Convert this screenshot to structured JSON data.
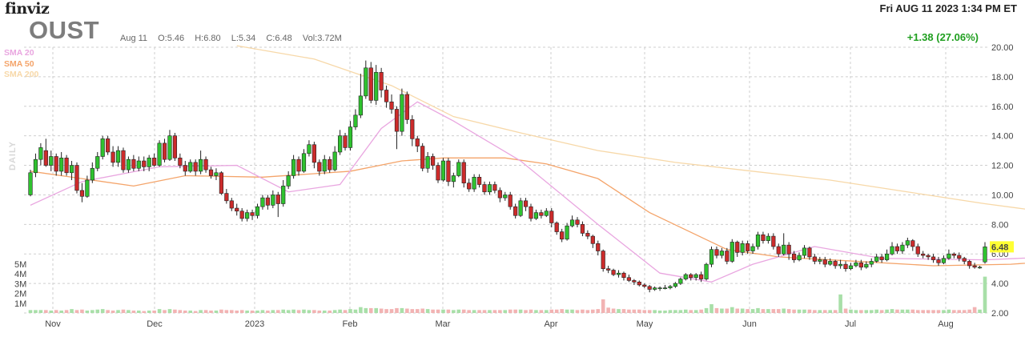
{
  "header": {
    "logo": "finviz",
    "datetime": "Fri AUG 11 2023 1:34 PM ET",
    "ticker": "OUST",
    "date": "Aug 11",
    "open": "O:5.46",
    "high": "H:6.80",
    "low": "L:5.34",
    "close": "C:6.48",
    "volume": "Vol:3.72M",
    "change": "+1.38 (27.06%)",
    "side_label": "DAILY"
  },
  "legend": [
    {
      "label": "SMA 20",
      "color": "#e9a6e0"
    },
    {
      "label": "SMA 50",
      "color": "#f4a46a"
    },
    {
      "label": "SMA 200",
      "color": "#f7d8a8"
    }
  ],
  "colors": {
    "up": "#2fc22f",
    "down": "#cc2b2b",
    "vol_up": "#a8dfa8",
    "vol_down": "#f2b3b3",
    "grid": "#cfcfcf",
    "last_price_bg": "#ffff33"
  },
  "chart_data": {
    "type": "candlestick",
    "y_axis": {
      "ticks": [
        "2.00",
        "4.00",
        "6.00",
        "8.00",
        "10.00",
        "12.00",
        "14.00",
        "16.00",
        "18.00",
        "20.00"
      ],
      "ylim": [
        2,
        20
      ]
    },
    "volume_axis": {
      "ticks": [
        "1M",
        "2M",
        "3M",
        "4M",
        "5M"
      ]
    },
    "x_ticks": [
      "Nov",
      "Dec",
      "2023",
      "Feb",
      "Mar",
      "Apr",
      "May",
      "Jun",
      "Jul",
      "Aug"
    ],
    "last_price": "6.48",
    "candles": [
      [
        10.0,
        11.5,
        11.7,
        9.9,
        0.3
      ],
      [
        11.5,
        12.4,
        12.8,
        11.2,
        0.3
      ],
      [
        12.4,
        13.2,
        13.5,
        12.0,
        0.3
      ],
      [
        13.0,
        12.0,
        13.8,
        11.9,
        0.3
      ],
      [
        12.0,
        12.6,
        13.0,
        11.6,
        0.25
      ],
      [
        12.6,
        11.6,
        12.8,
        11.3,
        0.3
      ],
      [
        11.6,
        12.5,
        12.9,
        11.3,
        0.25
      ],
      [
        12.5,
        11.5,
        12.7,
        11.3,
        0.3
      ],
      [
        11.5,
        12.0,
        12.3,
        11.0,
        0.4
      ],
      [
        12.0,
        10.3,
        12.2,
        10.1,
        0.3
      ],
      [
        10.3,
        9.9,
        10.8,
        9.5,
        0.35
      ],
      [
        9.9,
        11.0,
        11.3,
        9.8,
        0.25
      ],
      [
        11.0,
        11.8,
        12.2,
        10.8,
        0.3
      ],
      [
        11.8,
        12.6,
        12.9,
        11.6,
        0.35
      ],
      [
        12.6,
        13.8,
        14.0,
        12.4,
        0.4
      ],
      [
        13.8,
        12.9,
        14.0,
        12.7,
        0.3
      ],
      [
        12.9,
        12.2,
        13.3,
        11.9,
        0.25
      ],
      [
        12.2,
        13.0,
        13.3,
        11.9,
        0.3
      ],
      [
        13.0,
        11.7,
        13.2,
        11.5,
        0.35
      ],
      [
        11.7,
        12.4,
        12.6,
        11.5,
        0.3
      ],
      [
        12.4,
        11.8,
        12.7,
        11.6,
        0.25
      ],
      [
        11.8,
        12.3,
        12.6,
        11.6,
        0.25
      ],
      [
        12.3,
        11.9,
        12.6,
        11.6,
        0.2
      ],
      [
        11.9,
        12.5,
        12.7,
        11.6,
        0.25
      ],
      [
        12.5,
        12.0,
        12.8,
        11.9,
        0.25
      ],
      [
        12.0,
        13.5,
        13.7,
        11.9,
        0.4
      ],
      [
        13.5,
        12.4,
        13.8,
        12.2,
        0.3
      ],
      [
        12.4,
        14.0,
        14.4,
        12.3,
        0.4
      ],
      [
        14.0,
        12.5,
        14.2,
        12.3,
        0.35
      ],
      [
        12.5,
        12.0,
        12.8,
        11.8,
        0.3
      ],
      [
        12.0,
        11.6,
        12.3,
        11.3,
        0.25
      ],
      [
        11.6,
        12.2,
        12.4,
        11.5,
        0.25
      ],
      [
        12.2,
        11.6,
        12.4,
        11.3,
        0.2
      ],
      [
        11.6,
        12.4,
        13.0,
        11.4,
        0.3
      ],
      [
        12.4,
        11.7,
        12.6,
        11.5,
        0.3
      ],
      [
        11.7,
        11.3,
        11.9,
        11.1,
        0.25
      ],
      [
        11.3,
        11.5,
        11.8,
        11.0,
        0.25
      ],
      [
        11.5,
        10.1,
        11.6,
        10.0,
        0.35
      ],
      [
        10.1,
        9.6,
        10.4,
        9.4,
        0.3
      ],
      [
        9.6,
        9.1,
        9.8,
        8.9,
        0.3
      ],
      [
        9.1,
        8.9,
        9.4,
        8.6,
        0.25
      ],
      [
        8.9,
        8.4,
        9.1,
        8.2,
        0.3
      ],
      [
        8.4,
        8.8,
        9.0,
        8.2,
        0.25
      ],
      [
        8.8,
        8.6,
        9.0,
        8.3,
        0.25
      ],
      [
        8.6,
        9.2,
        9.4,
        8.4,
        0.25
      ],
      [
        9.2,
        9.8,
        10.0,
        9.0,
        0.3
      ],
      [
        9.8,
        9.3,
        10.0,
        9.0,
        0.25
      ],
      [
        9.3,
        10.0,
        10.3,
        9.1,
        0.3
      ],
      [
        10.0,
        9.4,
        10.2,
        8.5,
        0.3
      ],
      [
        9.4,
        10.6,
        11.0,
        9.2,
        0.35
      ],
      [
        10.6,
        11.3,
        11.6,
        10.4,
        0.3
      ],
      [
        11.3,
        12.4,
        12.7,
        11.1,
        0.35
      ],
      [
        12.4,
        11.6,
        12.6,
        11.3,
        0.3
      ],
      [
        11.6,
        12.8,
        13.1,
        11.5,
        0.35
      ],
      [
        12.8,
        13.4,
        13.7,
        12.6,
        0.3
      ],
      [
        13.4,
        12.2,
        13.6,
        11.8,
        0.3
      ],
      [
        12.2,
        11.6,
        12.4,
        11.3,
        0.25
      ],
      [
        11.6,
        12.4,
        12.7,
        11.4,
        0.25
      ],
      [
        12.4,
        11.7,
        12.6,
        11.5,
        0.25
      ],
      [
        11.7,
        12.9,
        13.3,
        11.6,
        0.3
      ],
      [
        12.9,
        14.0,
        14.4,
        12.7,
        0.35
      ],
      [
        14.0,
        13.2,
        14.2,
        13.0,
        0.3
      ],
      [
        13.2,
        14.6,
        15.0,
        13.0,
        0.4
      ],
      [
        14.6,
        15.4,
        15.8,
        14.4,
        0.35
      ],
      [
        15.4,
        16.7,
        18.2,
        15.2,
        0.6
      ],
      [
        16.7,
        18.6,
        19.1,
        16.5,
        0.5
      ],
      [
        18.6,
        16.4,
        19.0,
        16.2,
        0.5
      ],
      [
        16.4,
        18.3,
        18.8,
        16.1,
        0.5
      ],
      [
        18.3,
        17.1,
        18.6,
        16.6,
        0.45
      ],
      [
        17.1,
        16.3,
        17.4,
        15.9,
        0.4
      ],
      [
        16.3,
        15.8,
        16.8,
        15.5,
        0.4
      ],
      [
        15.8,
        14.3,
        16.0,
        13.1,
        0.5
      ],
      [
        14.3,
        16.8,
        17.2,
        14.0,
        0.5
      ],
      [
        16.8,
        15.1,
        17.0,
        14.8,
        0.45
      ],
      [
        15.1,
        13.8,
        15.4,
        13.3,
        0.4
      ],
      [
        13.8,
        13.3,
        14.0,
        12.9,
        0.4
      ],
      [
        13.3,
        11.8,
        13.5,
        11.6,
        0.45
      ],
      [
        11.8,
        12.6,
        12.9,
        11.5,
        0.4
      ],
      [
        12.6,
        12.0,
        12.8,
        11.7,
        0.35
      ],
      [
        12.0,
        11.0,
        12.2,
        10.8,
        0.35
      ],
      [
        11.0,
        12.3,
        12.5,
        10.9,
        0.35
      ],
      [
        12.3,
        10.9,
        12.5,
        10.6,
        0.35
      ],
      [
        10.9,
        11.3,
        11.5,
        10.5,
        0.3
      ],
      [
        11.3,
        12.2,
        12.4,
        11.2,
        0.35
      ],
      [
        12.2,
        10.8,
        12.4,
        10.5,
        0.35
      ],
      [
        10.8,
        10.4,
        11.1,
        10.2,
        0.3
      ],
      [
        10.4,
        11.2,
        11.4,
        10.2,
        0.3
      ],
      [
        11.2,
        10.7,
        11.4,
        10.5,
        0.3
      ],
      [
        10.7,
        10.2,
        10.9,
        10.0,
        0.3
      ],
      [
        10.2,
        10.7,
        10.9,
        10.0,
        0.3
      ],
      [
        10.7,
        10.3,
        10.9,
        10.1,
        0.3
      ],
      [
        10.3,
        9.8,
        10.5,
        9.5,
        0.3
      ],
      [
        9.8,
        10.0,
        10.2,
        9.6,
        0.3
      ],
      [
        10.0,
        9.2,
        10.2,
        9.0,
        0.35
      ],
      [
        9.2,
        8.6,
        9.4,
        8.4,
        0.35
      ],
      [
        8.6,
        9.6,
        9.8,
        8.5,
        0.35
      ],
      [
        9.6,
        9.2,
        9.8,
        8.9,
        0.3
      ],
      [
        9.2,
        8.4,
        9.4,
        8.2,
        0.35
      ],
      [
        8.4,
        8.8,
        9.0,
        8.3,
        0.3
      ],
      [
        8.8,
        8.6,
        9.0,
        8.4,
        0.3
      ],
      [
        8.6,
        8.9,
        9.1,
        8.5,
        0.3
      ],
      [
        8.9,
        8.1,
        9.1,
        7.8,
        0.35
      ],
      [
        8.1,
        7.5,
        8.2,
        7.3,
        0.35
      ],
      [
        7.5,
        7.0,
        7.7,
        6.8,
        0.4
      ],
      [
        7.0,
        7.9,
        8.1,
        6.9,
        0.35
      ],
      [
        7.9,
        8.3,
        8.6,
        7.8,
        0.35
      ],
      [
        8.3,
        8.0,
        8.5,
        7.8,
        0.3
      ],
      [
        8.0,
        7.4,
        8.2,
        7.2,
        0.35
      ],
      [
        7.4,
        7.2,
        7.6,
        7.0,
        0.3
      ],
      [
        7.2,
        6.7,
        7.3,
        6.4,
        0.35
      ],
      [
        6.7,
        6.2,
        6.9,
        5.9,
        0.4
      ],
      [
        6.2,
        5.0,
        6.3,
        4.8,
        1.4
      ],
      [
        5.0,
        4.9,
        5.2,
        4.7,
        0.55
      ],
      [
        4.9,
        4.6,
        5.0,
        4.5,
        0.45
      ],
      [
        4.6,
        4.7,
        4.9,
        4.4,
        0.4
      ],
      [
        4.7,
        4.4,
        4.8,
        4.2,
        0.4
      ],
      [
        4.4,
        4.2,
        4.6,
        4.1,
        0.35
      ],
      [
        4.2,
        4.1,
        4.3,
        3.9,
        0.35
      ],
      [
        4.1,
        3.9,
        4.2,
        3.8,
        0.35
      ],
      [
        3.9,
        3.8,
        4.0,
        3.7,
        0.3
      ],
      [
        3.8,
        3.6,
        3.9,
        3.4,
        0.3
      ],
      [
        3.6,
        3.7,
        3.8,
        3.5,
        0.3
      ],
      [
        3.7,
        3.7,
        3.8,
        3.5,
        0.25
      ],
      [
        3.7,
        3.7,
        3.9,
        3.6,
        0.25
      ],
      [
        3.7,
        3.8,
        3.9,
        3.6,
        0.3
      ],
      [
        3.8,
        4.0,
        4.1,
        3.7,
        0.3
      ],
      [
        4.0,
        4.3,
        4.4,
        3.9,
        0.3
      ],
      [
        4.3,
        4.6,
        4.7,
        4.2,
        0.35
      ],
      [
        4.6,
        4.4,
        4.7,
        4.2,
        0.3
      ],
      [
        4.4,
        4.6,
        4.7,
        4.2,
        0.3
      ],
      [
        4.6,
        4.3,
        4.8,
        4.1,
        0.35
      ],
      [
        4.3,
        5.3,
        5.4,
        4.2,
        0.5
      ],
      [
        5.3,
        6.3,
        6.5,
        5.1,
        0.9
      ],
      [
        6.3,
        5.9,
        6.5,
        5.7,
        0.5
      ],
      [
        5.9,
        6.2,
        6.4,
        5.7,
        0.45
      ],
      [
        6.2,
        5.5,
        6.4,
        5.3,
        0.45
      ],
      [
        5.5,
        6.8,
        7.0,
        5.4,
        0.6
      ],
      [
        6.8,
        6.1,
        6.9,
        5.8,
        0.45
      ],
      [
        6.1,
        6.7,
        6.9,
        5.9,
        0.45
      ],
      [
        6.7,
        6.2,
        6.9,
        6.0,
        0.4
      ],
      [
        6.2,
        6.5,
        6.7,
        6.0,
        0.4
      ],
      [
        6.5,
        7.3,
        7.5,
        6.3,
        0.5
      ],
      [
        7.3,
        6.9,
        7.5,
        6.7,
        0.4
      ],
      [
        6.9,
        7.2,
        7.4,
        6.7,
        0.4
      ],
      [
        7.2,
        6.5,
        7.4,
        6.3,
        0.4
      ],
      [
        6.5,
        6.0,
        6.7,
        5.8,
        0.4
      ],
      [
        6.0,
        6.6,
        7.4,
        5.9,
        0.45
      ],
      [
        6.6,
        6.0,
        6.8,
        5.6,
        0.4
      ],
      [
        6.0,
        5.6,
        6.2,
        5.4,
        0.35
      ],
      [
        5.6,
        5.9,
        6.1,
        5.5,
        0.35
      ],
      [
        5.9,
        6.4,
        6.6,
        5.7,
        0.35
      ],
      [
        6.4,
        5.8,
        6.5,
        5.6,
        0.35
      ],
      [
        5.8,
        5.5,
        6.0,
        5.3,
        0.3
      ],
      [
        5.5,
        5.6,
        5.8,
        5.3,
        0.3
      ],
      [
        5.6,
        5.3,
        5.8,
        5.1,
        0.3
      ],
      [
        5.3,
        5.5,
        5.7,
        5.2,
        0.3
      ],
      [
        5.5,
        5.2,
        5.6,
        5.0,
        0.3
      ],
      [
        5.2,
        5.3,
        5.6,
        5.0,
        1.9
      ],
      [
        5.3,
        5.0,
        5.5,
        4.8,
        0.45
      ],
      [
        5.0,
        5.2,
        5.4,
        4.9,
        0.35
      ],
      [
        5.2,
        5.4,
        5.6,
        5.1,
        0.3
      ],
      [
        5.4,
        5.1,
        5.6,
        4.9,
        0.3
      ],
      [
        5.1,
        5.3,
        5.5,
        5.0,
        0.3
      ],
      [
        5.3,
        5.5,
        5.7,
        5.1,
        0.3
      ],
      [
        5.5,
        5.8,
        6.0,
        5.4,
        0.35
      ],
      [
        5.8,
        5.6,
        6.0,
        5.4,
        0.3
      ],
      [
        5.6,
        6.0,
        6.3,
        5.5,
        0.35
      ],
      [
        6.0,
        6.5,
        6.8,
        5.9,
        0.4
      ],
      [
        6.5,
        6.2,
        6.7,
        6.0,
        0.35
      ],
      [
        6.2,
        6.6,
        6.8,
        6.0,
        0.35
      ],
      [
        6.6,
        6.9,
        7.1,
        6.4,
        0.35
      ],
      [
        6.9,
        6.5,
        7.0,
        6.2,
        0.35
      ],
      [
        6.5,
        6.0,
        6.7,
        5.8,
        0.3
      ],
      [
        6.0,
        5.9,
        6.2,
        5.7,
        0.3
      ],
      [
        5.9,
        5.8,
        6.0,
        5.6,
        0.3
      ],
      [
        5.8,
        5.6,
        6.0,
        5.4,
        0.3
      ],
      [
        5.6,
        5.4,
        5.8,
        5.2,
        0.3
      ],
      [
        5.4,
        5.7,
        5.9,
        5.3,
        0.3
      ],
      [
        5.7,
        6.0,
        6.3,
        5.6,
        0.35
      ],
      [
        6.0,
        5.9,
        6.1,
        5.7,
        0.3
      ],
      [
        5.9,
        5.7,
        6.1,
        5.5,
        0.3
      ],
      [
        5.7,
        5.5,
        5.8,
        5.3,
        0.3
      ],
      [
        5.5,
        5.2,
        5.6,
        5.0,
        0.35
      ],
      [
        5.2,
        5.1,
        5.4,
        5.0,
        0.6
      ],
      [
        5.1,
        5.1,
        5.2,
        5.0,
        0.35
      ],
      [
        5.46,
        6.48,
        6.8,
        5.34,
        3.72
      ]
    ],
    "sma20": [
      [
        0,
        9.3
      ],
      [
        10,
        10.9
      ],
      [
        25,
        11.9
      ],
      [
        40,
        12.0
      ],
      [
        50,
        10.2
      ],
      [
        60,
        10.7
      ],
      [
        68,
        14.5
      ],
      [
        75,
        16.3
      ],
      [
        82,
        15.0
      ],
      [
        95,
        12.3
      ],
      [
        110,
        8.0
      ],
      [
        122,
        4.7
      ],
      [
        132,
        4.1
      ],
      [
        140,
        5.3
      ],
      [
        152,
        6.5
      ],
      [
        165,
        5.7
      ],
      [
        185,
        5.6
      ],
      [
        198,
        5.8
      ]
    ],
    "sma50": [
      [
        0,
        11.6
      ],
      [
        10,
        11.1
      ],
      [
        20,
        10.6
      ],
      [
        30,
        11.3
      ],
      [
        45,
        11.2
      ],
      [
        62,
        11.6
      ],
      [
        72,
        12.3
      ],
      [
        80,
        12.5
      ],
      [
        92,
        12.5
      ],
      [
        100,
        12.1
      ],
      [
        110,
        11.1
      ],
      [
        120,
        8.8
      ],
      [
        135,
        6.3
      ],
      [
        145,
        5.8
      ],
      [
        160,
        5.5
      ],
      [
        175,
        5.2
      ],
      [
        190,
        5.3
      ],
      [
        198,
        5.5
      ]
    ],
    "sma200": [
      [
        40,
        20.1
      ],
      [
        55,
        19.2
      ],
      [
        70,
        17.4
      ],
      [
        82,
        15.3
      ],
      [
        95,
        14.2
      ],
      [
        110,
        13.0
      ],
      [
        125,
        12.2
      ],
      [
        140,
        11.6
      ],
      [
        155,
        11.0
      ],
      [
        170,
        10.2
      ],
      [
        185,
        9.4
      ],
      [
        198,
        8.8
      ]
    ]
  }
}
